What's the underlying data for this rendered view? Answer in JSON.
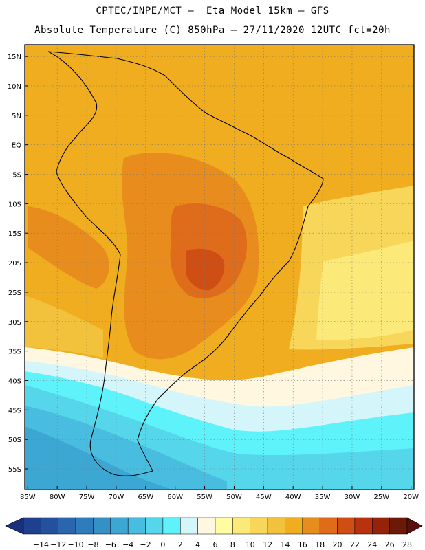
{
  "header": {
    "line1": "CPTEC/INPE/MCT –  Eta Model 15km – GFS",
    "line2": "Absolute Temperature (C) 850hPa – 27/11/2020 12UTC fct=20h"
  },
  "map": {
    "lat_labels": [
      "15N",
      "10N",
      "5N",
      "EQ",
      "5S",
      "10S",
      "15S",
      "20S",
      "25S",
      "30S",
      "35S",
      "40S",
      "45S",
      "50S",
      "55S"
    ],
    "lat_values": [
      15,
      10,
      5,
      0,
      -5,
      -10,
      -15,
      -20,
      -25,
      -30,
      -35,
      -40,
      -45,
      -50,
      -55
    ],
    "lon_labels": [
      "85W",
      "80W",
      "75W",
      "70W",
      "65W",
      "60W",
      "55W",
      "50W",
      "45W",
      "40W",
      "35W",
      "30W",
      "25W",
      "20W"
    ],
    "lon_values": [
      -85,
      -80,
      -75,
      -70,
      -65,
      -60,
      -55,
      -50,
      -45,
      -40,
      -35,
      -30,
      -25,
      -20
    ],
    "extent": {
      "lon_min": -85.5,
      "lon_max": -19.5,
      "lat_min": -58.5,
      "lat_max": 17
    }
  },
  "colorbar": {
    "labels": [
      "-14",
      "-12",
      "-10",
      "-8",
      "-6",
      "-4",
      "-2",
      "0",
      "2",
      "4",
      "6",
      "8",
      "10",
      "12",
      "14",
      "16",
      "18",
      "20",
      "22",
      "24",
      "26",
      "28"
    ],
    "colors": [
      "#1f3f8f",
      "#24509e",
      "#2a66ad",
      "#2f7cbd",
      "#3590c6",
      "#3da7d4",
      "#48bde0",
      "#56d6ea",
      "#5ef3fb",
      "#d4f6fb",
      "#fff7e0",
      "#fffda0",
      "#fbe97a",
      "#f7d65a",
      "#f2c23c",
      "#efad1f",
      "#e88d1d",
      "#df6c1a",
      "#cf4e14",
      "#b8330d",
      "#942309",
      "#6b1a08"
    ],
    "under_color": "#1a2f7a",
    "over_color": "#5a0f0f"
  },
  "field": {
    "warm_core": "#df6c1a",
    "hot_core": "#cf4e14",
    "warm": "#e88d1d",
    "orange": "#efad1f",
    "yellow_orange": "#f2c23c",
    "yellow": "#f7d65a",
    "light_yellow": "#fbe97a",
    "pale": "#fffda0",
    "cream": "#fff7e0",
    "ice": "#d4f6fb",
    "cyan": "#5ef3fb",
    "blue1": "#56d6ea",
    "blue2": "#48bde0",
    "blue3": "#3da7d4",
    "blue4": "#3590c6"
  }
}
